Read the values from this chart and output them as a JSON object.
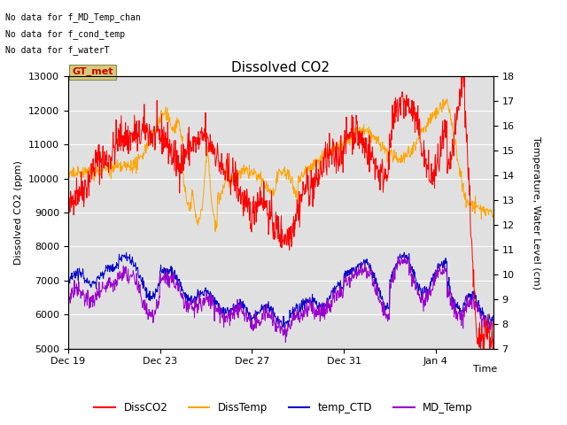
{
  "title": "Dissolved CO2",
  "xlabel": "Time",
  "ylabel_left": "Dissolved CO2 (ppm)",
  "ylabel_right": "Temperature, Water Level (cm)",
  "ylim_left": [
    5000,
    13000
  ],
  "ylim_right": [
    7.0,
    18.0
  ],
  "yticks_left": [
    5000,
    6000,
    7000,
    8000,
    9000,
    10000,
    11000,
    12000,
    13000
  ],
  "yticks_right": [
    7.0,
    8.0,
    9.0,
    10.0,
    11.0,
    12.0,
    13.0,
    14.0,
    15.0,
    16.0,
    17.0,
    18.0
  ],
  "xtick_labels": [
    "Dec 19",
    "Dec 23",
    "Dec 27",
    "Dec 31",
    "Jan 4"
  ],
  "xtick_positions": [
    0,
    4,
    8,
    12,
    16
  ],
  "xlim": [
    0,
    18.5
  ],
  "legend_labels": [
    "DissCO2",
    "DissTemp",
    "temp_CTD",
    "MD_Temp"
  ],
  "legend_colors": [
    "#ff0000",
    "#ffa500",
    "#0000cc",
    "#9900cc"
  ],
  "no_data_texts": [
    "No data for f_MD_Temp_chan",
    "No data for f_cond_temp",
    "No data for f_waterT"
  ],
  "gt_met_text": "GT_met",
  "gt_met_color": "#cc0000",
  "gt_met_bg": "#d4cc7a",
  "background_color": "#e0e0e0",
  "grid_color": "#ffffff",
  "figsize": [
    6.4,
    4.8
  ],
  "dpi": 100
}
